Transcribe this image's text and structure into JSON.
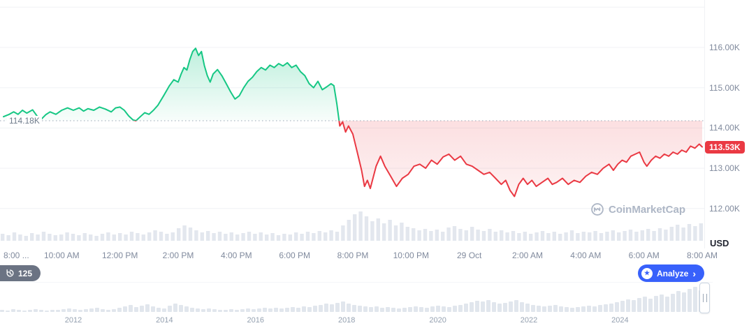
{
  "watermark": {
    "text": "CoinMarketCap"
  },
  "controls": {
    "history_count": "125",
    "analyze_label": "Analyze",
    "analyze_chevron": "›",
    "analyze_icon_glyph": "★"
  },
  "colors": {
    "green": "#16c784",
    "red": "#ea3943",
    "blue": "#3861fb",
    "grid": "#f0f2f5",
    "axis_text": "#808a9d",
    "volume": "#e3e7ee",
    "minimap_bar": "#e1e6ed",
    "watermark": "#aeb7c6",
    "baseline_dots": "#9aa5b4"
  },
  "chart_data": {
    "type": "line",
    "title": "Intraday price chart with baseline (CoinMarketCap style)",
    "legend": "off",
    "grid": "on",
    "baseline": {
      "value": 114.18,
      "label": "114.18K"
    },
    "current": {
      "value": 113.53,
      "label": "113.53K"
    },
    "y_axis": {
      "ticks": [
        116,
        115,
        114,
        113,
        112
      ],
      "labels": [
        "116.00K",
        "115.00K",
        "114.00K",
        "113.00K",
        "112.00K"
      ],
      "unit_label": "USD",
      "ylim": [
        111.8,
        117.1
      ]
    },
    "x_axis": {
      "ticks": [
        {
          "t": 0,
          "label": "8:00 ..."
        },
        {
          "t": 2,
          "label": "10:00 AM"
        },
        {
          "t": 4,
          "label": "12:00 PM"
        },
        {
          "t": 6,
          "label": "2:00 PM"
        },
        {
          "t": 8,
          "label": "4:00 PM"
        },
        {
          "t": 10,
          "label": "6:00 PM"
        },
        {
          "t": 12,
          "label": "8:00 PM"
        },
        {
          "t": 14,
          "label": "10:00 PM"
        },
        {
          "t": 16,
          "label": "29 Oct"
        },
        {
          "t": 18,
          "label": "2:00 AM"
        },
        {
          "t": 20,
          "label": "4:00 AM"
        },
        {
          "t": 22,
          "label": "6:00 AM"
        },
        {
          "t": 24,
          "label": "8:00 AM"
        }
      ]
    },
    "price_series": {
      "name": "price",
      "units": "K USD",
      "points": [
        [
          0,
          114.28
        ],
        [
          0.2,
          114.34
        ],
        [
          0.35,
          114.4
        ],
        [
          0.5,
          114.34
        ],
        [
          0.65,
          114.44
        ],
        [
          0.8,
          114.37
        ],
        [
          1,
          114.45
        ],
        [
          1.15,
          114.3
        ],
        [
          1.3,
          114.22
        ],
        [
          1.45,
          114.33
        ],
        [
          1.6,
          114.4
        ],
        [
          1.8,
          114.34
        ],
        [
          2,
          114.44
        ],
        [
          2.2,
          114.5
        ],
        [
          2.4,
          114.44
        ],
        [
          2.6,
          114.5
        ],
        [
          2.75,
          114.42
        ],
        [
          2.9,
          114.48
        ],
        [
          3.1,
          114.44
        ],
        [
          3.3,
          114.52
        ],
        [
          3.5,
          114.47
        ],
        [
          3.7,
          114.4
        ],
        [
          3.85,
          114.5
        ],
        [
          4,
          114.52
        ],
        [
          4.15,
          114.44
        ],
        [
          4.3,
          114.3
        ],
        [
          4.45,
          114.2
        ],
        [
          4.55,
          114.18
        ],
        [
          4.7,
          114.28
        ],
        [
          4.85,
          114.38
        ],
        [
          5,
          114.34
        ],
        [
          5.15,
          114.44
        ],
        [
          5.3,
          114.56
        ],
        [
          5.5,
          114.8
        ],
        [
          5.7,
          115.05
        ],
        [
          5.85,
          115.2
        ],
        [
          6,
          115.14
        ],
        [
          6.1,
          115.34
        ],
        [
          6.2,
          115.5
        ],
        [
          6.3,
          115.44
        ],
        [
          6.4,
          115.7
        ],
        [
          6.5,
          115.9
        ],
        [
          6.6,
          115.98
        ],
        [
          6.7,
          115.8
        ],
        [
          6.8,
          115.9
        ],
        [
          6.9,
          115.55
        ],
        [
          7,
          115.3
        ],
        [
          7.1,
          115.14
        ],
        [
          7.2,
          115.34
        ],
        [
          7.35,
          115.45
        ],
        [
          7.5,
          115.3
        ],
        [
          7.65,
          115.1
        ],
        [
          7.8,
          114.9
        ],
        [
          7.95,
          114.72
        ],
        [
          8.1,
          114.8
        ],
        [
          8.25,
          115
        ],
        [
          8.4,
          115.16
        ],
        [
          8.55,
          115.26
        ],
        [
          8.7,
          115.4
        ],
        [
          8.85,
          115.5
        ],
        [
          9,
          115.44
        ],
        [
          9.15,
          115.56
        ],
        [
          9.3,
          115.5
        ],
        [
          9.45,
          115.6
        ],
        [
          9.6,
          115.54
        ],
        [
          9.75,
          115.62
        ],
        [
          9.9,
          115.5
        ],
        [
          10.05,
          115.56
        ],
        [
          10.2,
          115.4
        ],
        [
          10.35,
          115.3
        ],
        [
          10.5,
          115.1
        ],
        [
          10.65,
          115
        ],
        [
          10.8,
          115.16
        ],
        [
          10.95,
          114.95
        ],
        [
          11.1,
          115.02
        ],
        [
          11.25,
          115.1
        ],
        [
          11.35,
          115.05
        ],
        [
          11.45,
          114.6
        ],
        [
          11.55,
          114.05
        ],
        [
          11.65,
          114.15
        ],
        [
          11.75,
          113.9
        ],
        [
          11.85,
          114.05
        ],
        [
          12,
          113.85
        ],
        [
          12.15,
          113.4
        ],
        [
          12.3,
          112.95
        ],
        [
          12.4,
          112.55
        ],
        [
          12.5,
          112.7
        ],
        [
          12.6,
          112.5
        ],
        [
          12.8,
          113.05
        ],
        [
          12.95,
          113.3
        ],
        [
          13.1,
          113.05
        ],
        [
          13.3,
          112.8
        ],
        [
          13.5,
          112.55
        ],
        [
          13.7,
          112.75
        ],
        [
          13.9,
          112.85
        ],
        [
          14.1,
          113.05
        ],
        [
          14.3,
          113.1
        ],
        [
          14.5,
          113
        ],
        [
          14.7,
          113.2
        ],
        [
          14.9,
          113.1
        ],
        [
          15.1,
          113.28
        ],
        [
          15.3,
          113.35
        ],
        [
          15.5,
          113.2
        ],
        [
          15.7,
          113.3
        ],
        [
          15.9,
          113.1
        ],
        [
          16.1,
          113.05
        ],
        [
          16.3,
          112.95
        ],
        [
          16.5,
          112.85
        ],
        [
          16.7,
          112.9
        ],
        [
          16.9,
          112.75
        ],
        [
          17.1,
          112.6
        ],
        [
          17.25,
          112.7
        ],
        [
          17.4,
          112.45
        ],
        [
          17.55,
          112.3
        ],
        [
          17.7,
          112.6
        ],
        [
          17.85,
          112.75
        ],
        [
          18,
          112.6
        ],
        [
          18.15,
          112.7
        ],
        [
          18.3,
          112.55
        ],
        [
          18.5,
          112.65
        ],
        [
          18.7,
          112.75
        ],
        [
          18.85,
          112.6
        ],
        [
          19,
          112.65
        ],
        [
          19.2,
          112.75
        ],
        [
          19.4,
          112.6
        ],
        [
          19.6,
          112.7
        ],
        [
          19.8,
          112.65
        ],
        [
          20,
          112.8
        ],
        [
          20.2,
          112.9
        ],
        [
          20.4,
          112.85
        ],
        [
          20.6,
          113
        ],
        [
          20.8,
          113.1
        ],
        [
          20.95,
          112.95
        ],
        [
          21.1,
          113.1
        ],
        [
          21.25,
          113.2
        ],
        [
          21.4,
          113.15
        ],
        [
          21.55,
          113.3
        ],
        [
          21.7,
          113.35
        ],
        [
          21.85,
          113.4
        ],
        [
          22,
          113.15
        ],
        [
          22.1,
          113.05
        ],
        [
          22.25,
          113.2
        ],
        [
          22.4,
          113.3
        ],
        [
          22.55,
          113.25
        ],
        [
          22.7,
          113.35
        ],
        [
          22.85,
          113.3
        ],
        [
          23,
          113.4
        ],
        [
          23.15,
          113.35
        ],
        [
          23.3,
          113.45
        ],
        [
          23.45,
          113.4
        ],
        [
          23.6,
          113.55
        ],
        [
          23.75,
          113.5
        ],
        [
          23.9,
          113.6
        ],
        [
          24,
          113.53
        ]
      ]
    },
    "volume_bars": [
      10,
      8,
      12,
      9,
      7,
      11,
      9,
      13,
      10,
      8,
      9,
      12,
      10,
      8,
      11,
      9,
      7,
      10,
      12,
      9,
      11,
      9,
      13,
      11,
      9,
      12,
      15,
      13,
      10,
      12,
      18,
      22,
      19,
      15,
      12,
      14,
      11,
      13,
      10,
      12,
      9,
      11,
      13,
      10,
      12,
      9,
      11,
      8,
      10,
      9,
      12,
      10,
      13,
      11,
      14,
      12,
      15,
      13,
      22,
      30,
      38,
      42,
      35,
      28,
      32,
      25,
      30,
      22,
      26,
      20,
      18,
      15,
      17,
      14,
      16,
      13,
      19,
      21,
      17,
      15,
      20,
      16,
      14,
      17,
      13,
      15,
      12,
      14,
      11,
      13,
      10,
      12,
      14,
      11,
      13,
      10,
      12,
      15,
      11,
      13,
      12,
      14,
      11,
      13,
      15,
      12,
      14,
      16,
      13,
      15,
      17,
      14,
      18,
      16,
      20,
      23,
      19,
      24,
      21,
      25
    ],
    "minimap": {
      "years": [
        2012,
        2014,
        2016,
        2018,
        2020,
        2022,
        2024
      ],
      "bars": [
        3,
        2,
        4,
        3,
        2,
        3,
        4,
        3,
        2,
        3,
        3,
        4,
        5,
        4,
        3,
        4,
        5,
        6,
        4,
        3,
        4,
        6,
        8,
        10,
        7,
        9,
        11,
        8,
        6,
        5,
        9,
        12,
        10,
        8,
        6,
        5,
        4,
        5,
        4,
        3,
        3,
        4,
        3,
        4,
        5,
        4,
        5,
        6,
        5,
        6,
        5,
        6,
        7,
        6,
        8,
        7,
        9,
        10,
        12,
        11,
        13,
        15,
        12,
        10,
        9,
        8,
        7,
        8,
        6,
        7,
        6,
        5,
        6,
        7,
        8,
        7,
        6,
        8,
        9,
        8,
        7,
        9,
        10,
        12,
        14,
        16,
        15,
        17,
        14,
        12,
        13,
        15,
        17,
        14,
        12,
        10,
        9,
        8,
        9,
        10,
        8,
        7,
        6,
        7,
        8,
        9,
        8,
        10,
        11,
        12,
        14,
        16,
        18,
        17,
        20,
        22,
        19,
        23,
        25,
        22,
        26,
        30,
        28,
        33,
        36,
        31,
        38
      ]
    }
  }
}
